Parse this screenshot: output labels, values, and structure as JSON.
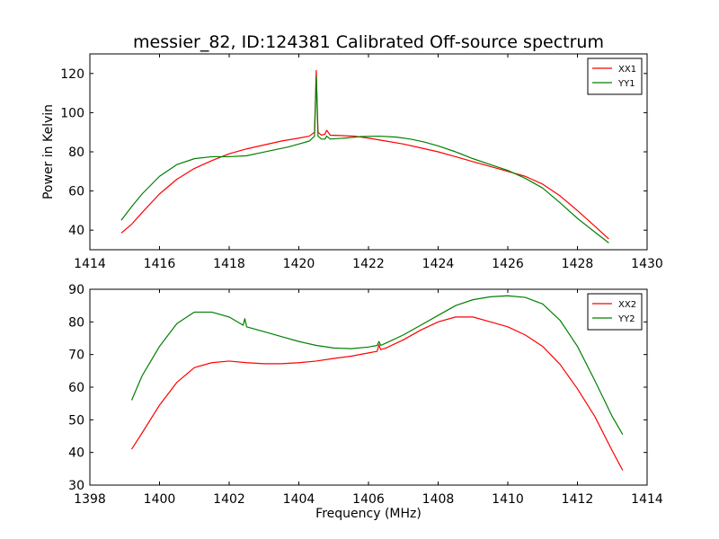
{
  "figure_title": "messier_82, ID:124381 Calibrated Off-source spectrum",
  "colors": {
    "red_series": "#ff0000",
    "green_series": "#008000",
    "axes": "#000000",
    "background": "#ffffff"
  },
  "chart_data": [
    {
      "type": "line",
      "title": "messier_82, ID:124381 Calibrated Off-source spectrum",
      "xlabel": "",
      "ylabel": "Power in Kelvin",
      "xlim": [
        1414,
        1430
      ],
      "ylim": [
        30,
        130
      ],
      "xticks": [
        1414,
        1416,
        1418,
        1420,
        1422,
        1424,
        1426,
        1428,
        1430
      ],
      "yticks": [
        40,
        60,
        80,
        100,
        120
      ],
      "grid": false,
      "legend_position": "top-right",
      "series": [
        {
          "name": "XX1",
          "color": "#ff0000",
          "x": [
            1414.9,
            1415.2,
            1415.5,
            1416.0,
            1416.5,
            1417.0,
            1417.5,
            1418.0,
            1418.5,
            1419.0,
            1419.5,
            1420.0,
            1420.3,
            1420.45,
            1420.5,
            1420.55,
            1420.65,
            1420.75,
            1420.8,
            1420.9,
            1421.2,
            1421.6,
            1422.0,
            1422.5,
            1423.0,
            1423.5,
            1424.0,
            1424.5,
            1425.0,
            1425.5,
            1426.0,
            1426.5,
            1427.0,
            1427.5,
            1428.0,
            1428.5,
            1428.9
          ],
          "y": [
            38.5,
            43,
            49,
            58.5,
            66,
            71.5,
            75.5,
            79,
            81.5,
            83.5,
            85.5,
            87,
            88,
            90,
            121.5,
            90,
            88.5,
            89,
            91,
            88.5,
            88.3,
            88,
            87,
            85.5,
            84,
            82,
            80,
            77.5,
            75,
            72.5,
            70,
            67.5,
            63.5,
            57.5,
            50,
            42,
            35.5
          ]
        },
        {
          "name": "YY1",
          "color": "#008000",
          "x": [
            1414.9,
            1415.2,
            1415.5,
            1416.0,
            1416.5,
            1417.0,
            1417.5,
            1418.0,
            1418.5,
            1418.9,
            1419.3,
            1419.7,
            1420.0,
            1420.3,
            1420.45,
            1420.5,
            1420.55,
            1420.65,
            1420.75,
            1420.8,
            1420.9,
            1421.3,
            1421.8,
            1422.3,
            1422.8,
            1423.2,
            1423.6,
            1424.0,
            1424.5,
            1425.0,
            1425.5,
            1426.0,
            1426.5,
            1427.0,
            1427.5,
            1428.0,
            1428.5,
            1428.9
          ],
          "y": [
            45,
            52,
            58.5,
            67.5,
            73.5,
            76.5,
            77.5,
            77.5,
            78,
            79.5,
            81,
            82.5,
            84,
            85.5,
            88,
            118.5,
            88,
            86.5,
            86.5,
            88,
            86.5,
            87,
            87.8,
            88,
            87.5,
            86.5,
            85,
            83,
            80,
            76.5,
            73.5,
            70.5,
            66.5,
            61.5,
            54,
            46,
            39,
            33.5
          ]
        }
      ]
    },
    {
      "type": "line",
      "title": "",
      "xlabel": "Frequency (MHz)",
      "ylabel": "",
      "xlim": [
        1398,
        1414
      ],
      "ylim": [
        30,
        90
      ],
      "xticks": [
        1398,
        1400,
        1402,
        1404,
        1406,
        1408,
        1410,
        1412,
        1414
      ],
      "yticks": [
        30,
        40,
        50,
        60,
        70,
        80,
        90
      ],
      "grid": false,
      "legend_position": "top-right",
      "series": [
        {
          "name": "XX2",
          "color": "#ff0000",
          "x": [
            1399.2,
            1399.5,
            1400.0,
            1400.5,
            1401.0,
            1401.5,
            1402.0,
            1402.5,
            1403.0,
            1403.5,
            1404.0,
            1404.5,
            1405.0,
            1405.5,
            1406.0,
            1406.25,
            1406.3,
            1406.35,
            1406.5,
            1407.0,
            1407.5,
            1408.0,
            1408.5,
            1409.0,
            1409.5,
            1410.0,
            1410.5,
            1411.0,
            1411.5,
            1412.0,
            1412.5,
            1413.0,
            1413.3
          ],
          "y": [
            41,
            46,
            54.5,
            61.5,
            66,
            67.5,
            68,
            67.5,
            67.2,
            67.2,
            67.5,
            68,
            68.8,
            69.5,
            70.5,
            71,
            73,
            71.5,
            72,
            74.5,
            77.5,
            80,
            81.5,
            81.5,
            80,
            78.5,
            76,
            72.5,
            67,
            59.5,
            51,
            40.5,
            34.5
          ]
        },
        {
          "name": "YY2",
          "color": "#008000",
          "x": [
            1399.2,
            1399.5,
            1400.0,
            1400.5,
            1401.0,
            1401.5,
            1402.0,
            1402.4,
            1402.45,
            1402.5,
            1403.0,
            1403.5,
            1404.0,
            1404.5,
            1405.0,
            1405.5,
            1406.0,
            1406.25,
            1406.3,
            1406.35,
            1406.5,
            1407.0,
            1407.5,
            1408.0,
            1408.5,
            1409.0,
            1409.5,
            1410.0,
            1410.5,
            1411.0,
            1411.5,
            1412.0,
            1412.5,
            1413.0,
            1413.3
          ],
          "y": [
            56,
            63.5,
            72.5,
            79.5,
            83,
            83,
            81.5,
            79,
            81,
            78.5,
            77,
            75.5,
            74,
            72.8,
            72,
            71.8,
            72.3,
            72.8,
            74,
            72.8,
            73.5,
            76,
            79,
            82,
            85,
            86.8,
            87.7,
            88,
            87.5,
            85.5,
            80.5,
            72.5,
            62,
            51,
            45.5
          ]
        }
      ]
    }
  ]
}
